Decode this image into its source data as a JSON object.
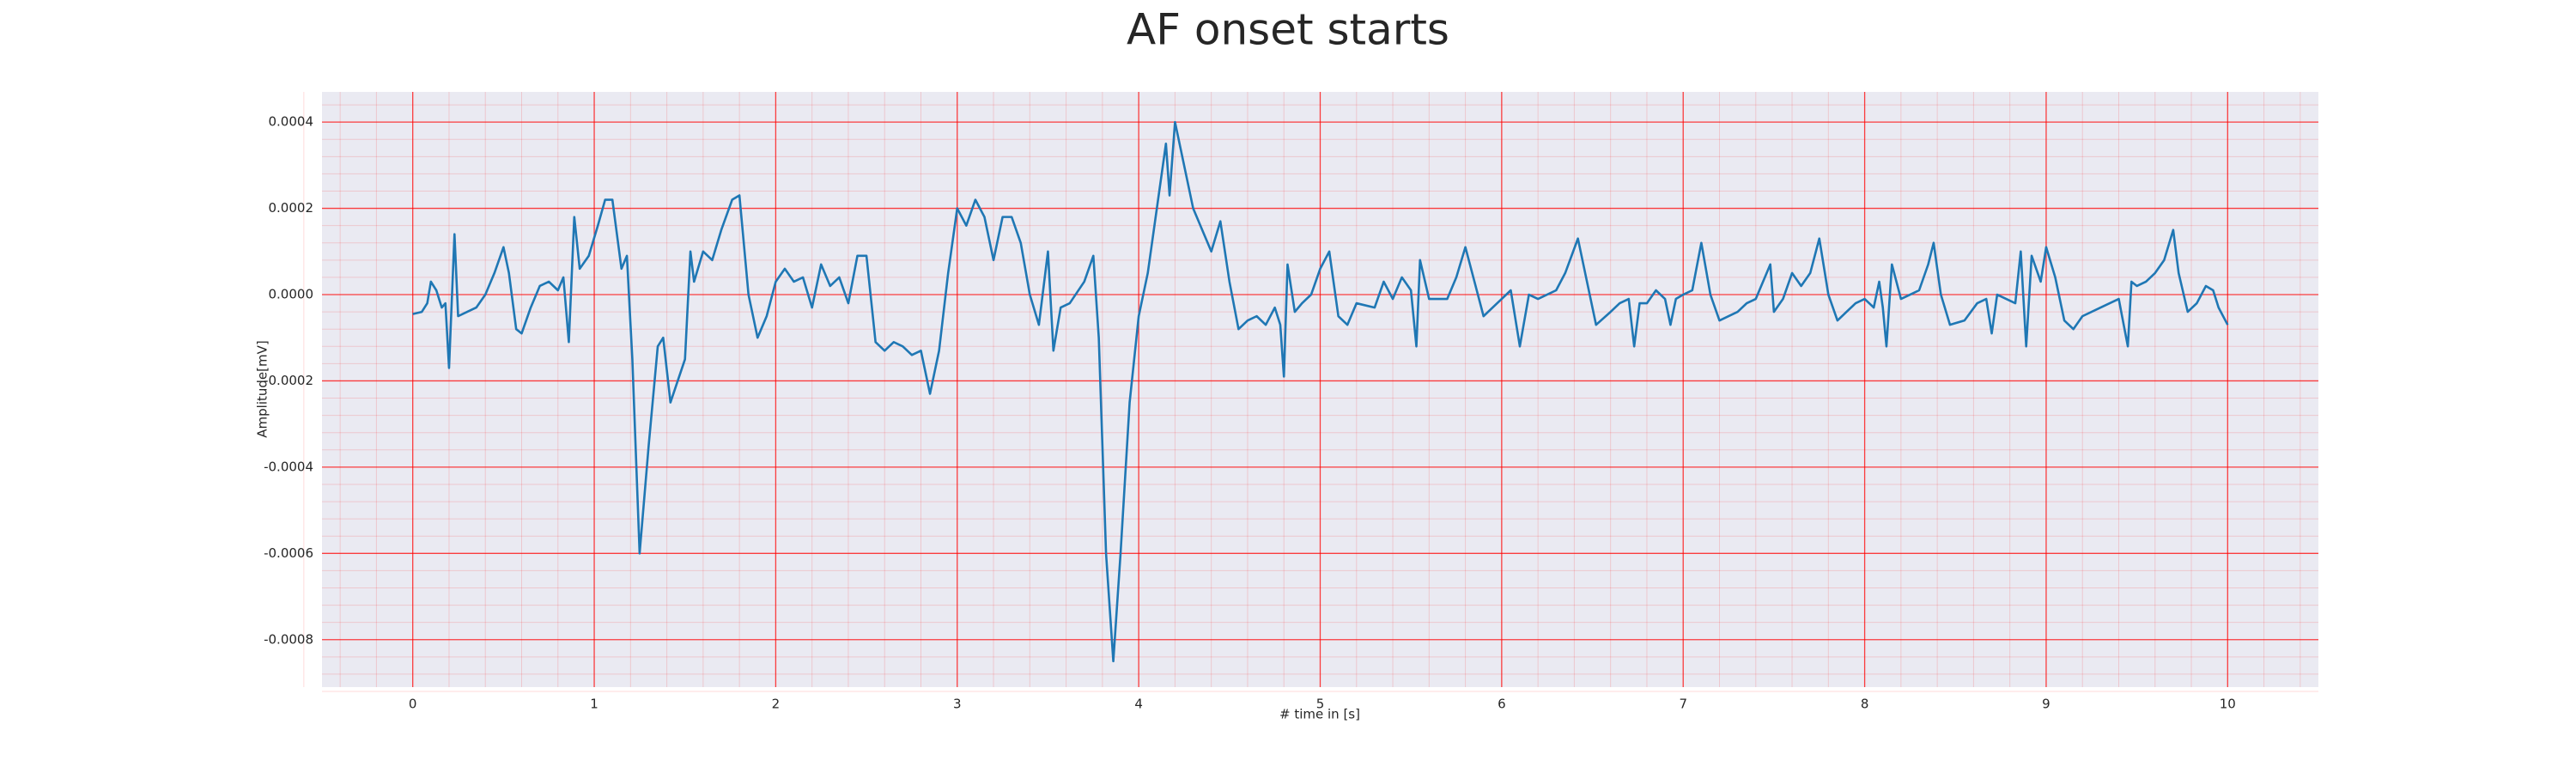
{
  "chart_data": {
    "type": "line",
    "title": "AF onset starts",
    "x_label": "# time in [s]",
    "y_label": "Amplitude[mV]",
    "xlim": [
      -0.5,
      10.5
    ],
    "ylim": [
      -0.00091,
      0.00047
    ],
    "xticks": [
      0,
      1,
      2,
      3,
      4,
      5,
      6,
      7,
      8,
      9,
      10
    ],
    "yticks": [
      {
        "value": -0.0008,
        "label": "-0.0008"
      },
      {
        "value": -0.0006,
        "label": "-0.0006"
      },
      {
        "value": -0.0004,
        "label": "-0.0004"
      },
      {
        "value": -0.0002,
        "label": "-0.0002"
      },
      {
        "value": 0,
        "label": "0.0000"
      },
      {
        "value": 0.0002,
        "label": "0.0002"
      },
      {
        "value": 0.0004,
        "label": "0.0004"
      }
    ],
    "grid": true,
    "grid_color": "#ff0000",
    "minor_grid": true,
    "minor_divisions": 5,
    "background": "#eaeaf2",
    "series": [
      {
        "color": "#1f77b4",
        "x": [
          0,
          0.05,
          0.08,
          0.1,
          0.13,
          0.16,
          0.18,
          0.2,
          0.23,
          0.25,
          0.3,
          0.35,
          0.4,
          0.45,
          0.5,
          0.53,
          0.57,
          0.6,
          0.65,
          0.7,
          0.75,
          0.8,
          0.83,
          0.86,
          0.89,
          0.92,
          0.97,
          1.02,
          1.06,
          1.1,
          1.15,
          1.18,
          1.21,
          1.25,
          1.3,
          1.35,
          1.38,
          1.42,
          1.46,
          1.5,
          1.53,
          1.55,
          1.6,
          1.65,
          1.7,
          1.76,
          1.8,
          1.85,
          1.9,
          1.95,
          2.0,
          2.05,
          2.1,
          2.15,
          2.2,
          2.25,
          2.3,
          2.35,
          2.4,
          2.45,
          2.5,
          2.55,
          2.6,
          2.65,
          2.7,
          2.75,
          2.8,
          2.85,
          2.9,
          2.95,
          3.0,
          3.05,
          3.1,
          3.15,
          3.2,
          3.25,
          3.3,
          3.35,
          3.4,
          3.45,
          3.5,
          3.53,
          3.57,
          3.62,
          3.7,
          3.75,
          3.78,
          3.82,
          3.86,
          3.9,
          3.95,
          4.0,
          4.05,
          4.1,
          4.15,
          4.17,
          4.2,
          4.25,
          4.3,
          4.35,
          4.4,
          4.45,
          4.5,
          4.55,
          4.6,
          4.65,
          4.7,
          4.75,
          4.78,
          4.8,
          4.82,
          4.86,
          4.9,
          4.95,
          5.0,
          5.05,
          5.1,
          5.15,
          5.2,
          5.3,
          5.35,
          5.4,
          5.45,
          5.5,
          5.53,
          5.55,
          5.6,
          5.7,
          5.75,
          5.8,
          5.85,
          5.9,
          5.95,
          6.0,
          6.05,
          6.1,
          6.15,
          6.2,
          6.3,
          6.35,
          6.42,
          6.47,
          6.52,
          6.6,
          6.65,
          6.7,
          6.73,
          6.76,
          6.8,
          6.85,
          6.9,
          6.93,
          6.96,
          7.0,
          7.05,
          7.1,
          7.15,
          7.2,
          7.3,
          7.35,
          7.4,
          7.48,
          7.5,
          7.55,
          7.6,
          7.65,
          7.7,
          7.75,
          7.8,
          7.85,
          7.9,
          7.95,
          8.0,
          8.05,
          8.08,
          8.1,
          8.12,
          8.15,
          8.2,
          8.25,
          8.3,
          8.35,
          8.38,
          8.42,
          8.47,
          8.55,
          8.62,
          8.67,
          8.7,
          8.73,
          8.78,
          8.83,
          8.86,
          8.89,
          8.92,
          8.97,
          9.0,
          9.05,
          9.1,
          9.15,
          9.2,
          9.3,
          9.35,
          9.4,
          9.45,
          9.47,
          9.5,
          9.55,
          9.6,
          9.65,
          9.7,
          9.73,
          9.78,
          9.83,
          9.88,
          9.92,
          9.95,
          10.0
        ],
        "values": [
          -4.5e-05,
          -4e-05,
          -2e-05,
          3e-05,
          1e-05,
          -3e-05,
          -2e-05,
          -0.00017,
          0.00014,
          -5e-05,
          -4e-05,
          -3e-05,
          0,
          5e-05,
          0.00011,
          5e-05,
          -8e-05,
          -9e-05,
          -3e-05,
          2e-05,
          3e-05,
          1e-05,
          4e-05,
          -0.00011,
          0.00018,
          6e-05,
          9e-05,
          0.00016,
          0.00022,
          0.00022,
          6e-05,
          9e-05,
          -0.00015,
          -0.0006,
          -0.00035,
          -0.00012,
          -0.0001,
          -0.00025,
          -0.0002,
          -0.00015,
          0.0001,
          3e-05,
          0.0001,
          8e-05,
          0.00015,
          0.00022,
          0.00023,
          0,
          -0.0001,
          -5e-05,
          3e-05,
          6e-05,
          3e-05,
          4e-05,
          -3e-05,
          7e-05,
          2e-05,
          4e-05,
          -2e-05,
          9e-05,
          9e-05,
          -0.00011,
          -0.00013,
          -0.00011,
          -0.00012,
          -0.00014,
          -0.00013,
          -0.00023,
          -0.00013,
          5e-05,
          0.0002,
          0.00016,
          0.00022,
          0.00018,
          8e-05,
          0.00018,
          0.00018,
          0.00012,
          0,
          -7e-05,
          0.0001,
          -0.00013,
          -3e-05,
          -2e-05,
          3e-05,
          9e-05,
          -0.0001,
          -0.0006,
          -0.00085,
          -0.0006,
          -0.00025,
          -5e-05,
          5e-05,
          0.0002,
          0.00035,
          0.00023,
          0.0004,
          0.0003,
          0.0002,
          0.00015,
          0.0001,
          0.00017,
          3e-05,
          -8e-05,
          -6e-05,
          -5e-05,
          -7e-05,
          -3e-05,
          -7e-05,
          -0.00019,
          7e-05,
          -4e-05,
          -2e-05,
          0,
          6e-05,
          0.0001,
          -5e-05,
          -7e-05,
          -2e-05,
          -3e-05,
          3e-05,
          -1e-05,
          4e-05,
          1e-05,
          -0.00012,
          8e-05,
          -1e-05,
          -1e-05,
          4e-05,
          0.00011,
          3e-05,
          -5e-05,
          -3e-05,
          -1e-05,
          1e-05,
          -0.00012,
          0,
          -1e-05,
          1e-05,
          5e-05,
          0.00013,
          3e-05,
          -7e-05,
          -4e-05,
          -2e-05,
          -1e-05,
          -0.00012,
          -2e-05,
          -2e-05,
          1e-05,
          -1e-05,
          -7e-05,
          -1e-05,
          0,
          1e-05,
          0.00012,
          0,
          -6e-05,
          -4e-05,
          -2e-05,
          -1e-05,
          7e-05,
          -4e-05,
          -1e-05,
          5e-05,
          2e-05,
          5e-05,
          0.00013,
          0,
          -6e-05,
          -4e-05,
          -2e-05,
          -1e-05,
          -3e-05,
          3e-05,
          -3e-05,
          -0.00012,
          7e-05,
          -1e-05,
          0,
          1e-05,
          7e-05,
          0.00012,
          0,
          -7e-05,
          -6e-05,
          -2e-05,
          -1e-05,
          -9e-05,
          0,
          -1e-05,
          -2e-05,
          0.0001,
          -0.00012,
          9e-05,
          3e-05,
          0.00011,
          4e-05,
          -6e-05,
          -8e-05,
          -5e-05,
          -3e-05,
          -2e-05,
          -1e-05,
          -0.00012,
          3e-05,
          2e-05,
          3e-05,
          5e-05,
          8e-05,
          0.00015,
          5e-05,
          -4e-05,
          -2e-05,
          2e-05,
          1e-05,
          -3e-05,
          -7e-05
        ]
      }
    ]
  }
}
